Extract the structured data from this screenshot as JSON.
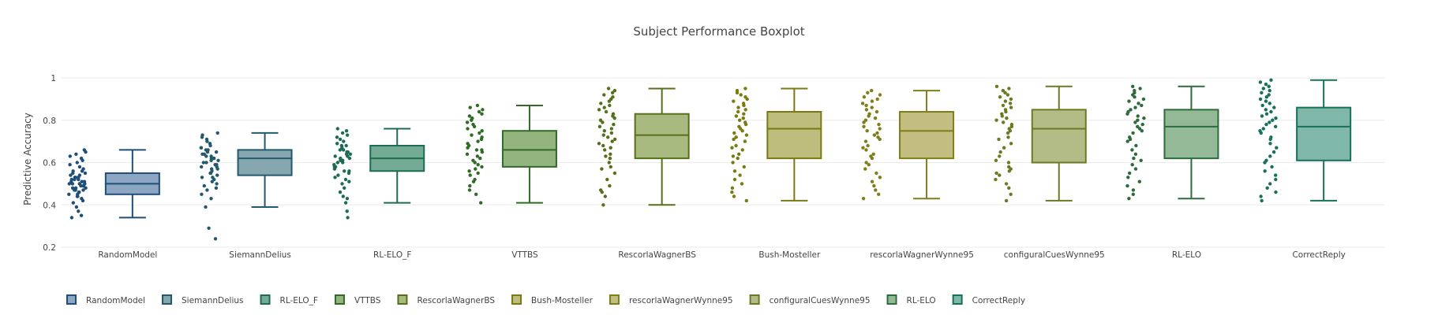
{
  "chart_data": {
    "type": "box",
    "title": "Subject Performance Boxplot",
    "xlabel": "",
    "ylabel": "Predictive Accuracy",
    "ylim": [
      0.2,
      1.0
    ],
    "yticks": [
      "0.2",
      "0.4",
      "0.6",
      "0.8",
      "1"
    ],
    "grid": true,
    "legend_position": "bottom",
    "series": [
      {
        "name": "RandomModel",
        "color": "#1f4e79",
        "fill": "#8ca6c3",
        "min": 0.34,
        "q1": 0.45,
        "median": 0.5,
        "q3": 0.55,
        "max": 0.66,
        "points": [
          0.34,
          0.35,
          0.37,
          0.39,
          0.41,
          0.42,
          0.43,
          0.44,
          0.44,
          0.45,
          0.45,
          0.46,
          0.46,
          0.47,
          0.47,
          0.47,
          0.48,
          0.48,
          0.48,
          0.49,
          0.49,
          0.49,
          0.5,
          0.5,
          0.5,
          0.5,
          0.51,
          0.51,
          0.51,
          0.52,
          0.52,
          0.52,
          0.53,
          0.53,
          0.53,
          0.54,
          0.54,
          0.55,
          0.55,
          0.56,
          0.56,
          0.57,
          0.58,
          0.59,
          0.6,
          0.61,
          0.62,
          0.63,
          0.64,
          0.65,
          0.66
        ]
      },
      {
        "name": "SiemannDelius",
        "color": "#235a6b",
        "fill": "#86a7b0",
        "min": 0.39,
        "q1": 0.54,
        "median": 0.62,
        "q3": 0.66,
        "max": 0.74,
        "points": [
          0.24,
          0.29,
          0.39,
          0.43,
          0.45,
          0.47,
          0.48,
          0.49,
          0.5,
          0.51,
          0.52,
          0.53,
          0.53,
          0.54,
          0.55,
          0.55,
          0.56,
          0.57,
          0.57,
          0.58,
          0.58,
          0.59,
          0.59,
          0.6,
          0.6,
          0.61,
          0.61,
          0.62,
          0.62,
          0.62,
          0.63,
          0.63,
          0.64,
          0.64,
          0.65,
          0.65,
          0.66,
          0.66,
          0.67,
          0.67,
          0.68,
          0.69,
          0.7,
          0.71,
          0.72,
          0.73,
          0.74
        ]
      },
      {
        "name": "RL-ELO_F",
        "color": "#1d6b55",
        "fill": "#74ab94",
        "min": 0.41,
        "q1": 0.56,
        "median": 0.62,
        "q3": 0.68,
        "max": 0.76,
        "points": [
          0.34,
          0.37,
          0.41,
          0.43,
          0.44,
          0.46,
          0.48,
          0.5,
          0.51,
          0.52,
          0.53,
          0.54,
          0.55,
          0.56,
          0.56,
          0.57,
          0.58,
          0.58,
          0.59,
          0.6,
          0.6,
          0.61,
          0.61,
          0.62,
          0.62,
          0.63,
          0.63,
          0.64,
          0.64,
          0.65,
          0.65,
          0.66,
          0.66,
          0.67,
          0.68,
          0.68,
          0.69,
          0.7,
          0.71,
          0.72,
          0.73,
          0.74,
          0.75,
          0.76
        ]
      },
      {
        "name": "VTTBS",
        "color": "#2f6b25",
        "fill": "#93b37f",
        "min": 0.41,
        "q1": 0.58,
        "median": 0.66,
        "q3": 0.75,
        "max": 0.87,
        "points": [
          0.41,
          0.45,
          0.47,
          0.49,
          0.51,
          0.52,
          0.54,
          0.55,
          0.56,
          0.57,
          0.58,
          0.59,
          0.6,
          0.61,
          0.62,
          0.63,
          0.64,
          0.65,
          0.66,
          0.66,
          0.67,
          0.68,
          0.69,
          0.7,
          0.71,
          0.72,
          0.73,
          0.74,
          0.75,
          0.76,
          0.77,
          0.78,
          0.79,
          0.8,
          0.81,
          0.82,
          0.83,
          0.84,
          0.85,
          0.86,
          0.87
        ]
      },
      {
        "name": "RescorlaWagnerBS",
        "color": "#55701a",
        "fill": "#a8ba7f",
        "min": 0.4,
        "q1": 0.62,
        "median": 0.73,
        "q3": 0.83,
        "max": 0.95,
        "points": [
          0.4,
          0.44,
          0.46,
          0.47,
          0.49,
          0.52,
          0.55,
          0.57,
          0.58,
          0.6,
          0.62,
          0.63,
          0.64,
          0.66,
          0.67,
          0.68,
          0.69,
          0.7,
          0.71,
          0.72,
          0.73,
          0.74,
          0.75,
          0.76,
          0.77,
          0.78,
          0.79,
          0.8,
          0.81,
          0.82,
          0.83,
          0.84,
          0.85,
          0.86,
          0.87,
          0.88,
          0.89,
          0.9,
          0.91,
          0.92,
          0.93,
          0.94,
          0.95
        ]
      },
      {
        "name": "Bush-Mosteller",
        "color": "#7a7a12",
        "fill": "#bfbd7e",
        "min": 0.42,
        "q1": 0.62,
        "median": 0.76,
        "q3": 0.84,
        "max": 0.95,
        "points": [
          0.42,
          0.44,
          0.46,
          0.48,
          0.5,
          0.52,
          0.54,
          0.56,
          0.58,
          0.6,
          0.62,
          0.63,
          0.64,
          0.66,
          0.67,
          0.68,
          0.7,
          0.71,
          0.72,
          0.73,
          0.74,
          0.75,
          0.76,
          0.77,
          0.78,
          0.79,
          0.8,
          0.81,
          0.82,
          0.83,
          0.84,
          0.85,
          0.86,
          0.87,
          0.88,
          0.89,
          0.9,
          0.91,
          0.92,
          0.93,
          0.94,
          0.95
        ]
      },
      {
        "name": "rescorlaWagnerWynne95",
        "color": "#7f7f19",
        "fill": "#c2be82",
        "min": 0.43,
        "q1": 0.62,
        "median": 0.75,
        "q3": 0.84,
        "max": 0.94,
        "points": [
          0.43,
          0.45,
          0.47,
          0.49,
          0.51,
          0.53,
          0.55,
          0.57,
          0.59,
          0.6,
          0.62,
          0.63,
          0.64,
          0.66,
          0.67,
          0.68,
          0.7,
          0.71,
          0.72,
          0.73,
          0.74,
          0.75,
          0.76,
          0.77,
          0.78,
          0.79,
          0.8,
          0.81,
          0.82,
          0.83,
          0.84,
          0.85,
          0.86,
          0.87,
          0.88,
          0.89,
          0.9,
          0.91,
          0.92,
          0.93,
          0.94
        ]
      },
      {
        "name": "configuralCuesWynne95",
        "color": "#6b7a22",
        "fill": "#b3bc86",
        "min": 0.42,
        "q1": 0.6,
        "median": 0.76,
        "q3": 0.85,
        "max": 0.96,
        "points": [
          0.42,
          0.45,
          0.48,
          0.5,
          0.52,
          0.54,
          0.55,
          0.56,
          0.57,
          0.58,
          0.6,
          0.61,
          0.63,
          0.65,
          0.67,
          0.69,
          0.71,
          0.72,
          0.74,
          0.75,
          0.76,
          0.77,
          0.78,
          0.79,
          0.8,
          0.81,
          0.82,
          0.83,
          0.84,
          0.85,
          0.86,
          0.87,
          0.88,
          0.89,
          0.9,
          0.91,
          0.92,
          0.93,
          0.94,
          0.95,
          0.96
        ]
      },
      {
        "name": "RL-ELO",
        "color": "#2e6b3c",
        "fill": "#93b996",
        "min": 0.43,
        "q1": 0.62,
        "median": 0.77,
        "q3": 0.85,
        "max": 0.96,
        "points": [
          0.43,
          0.45,
          0.47,
          0.49,
          0.51,
          0.53,
          0.55,
          0.57,
          0.59,
          0.61,
          0.62,
          0.64,
          0.66,
          0.68,
          0.7,
          0.71,
          0.72,
          0.74,
          0.75,
          0.76,
          0.77,
          0.78,
          0.79,
          0.8,
          0.81,
          0.82,
          0.83,
          0.84,
          0.85,
          0.86,
          0.87,
          0.88,
          0.89,
          0.9,
          0.91,
          0.92,
          0.93,
          0.94,
          0.95,
          0.96
        ]
      },
      {
        "name": "CorrectReply",
        "color": "#17705a",
        "fill": "#7fb8a9",
        "min": 0.42,
        "q1": 0.61,
        "median": 0.77,
        "q3": 0.86,
        "max": 0.99,
        "points": [
          0.42,
          0.44,
          0.46,
          0.48,
          0.5,
          0.52,
          0.54,
          0.56,
          0.58,
          0.6,
          0.61,
          0.63,
          0.65,
          0.67,
          0.69,
          0.71,
          0.72,
          0.74,
          0.75,
          0.76,
          0.77,
          0.78,
          0.79,
          0.8,
          0.81,
          0.82,
          0.83,
          0.84,
          0.85,
          0.86,
          0.87,
          0.88,
          0.89,
          0.9,
          0.91,
          0.92,
          0.93,
          0.94,
          0.95,
          0.96,
          0.97,
          0.98,
          0.99
        ]
      }
    ]
  }
}
